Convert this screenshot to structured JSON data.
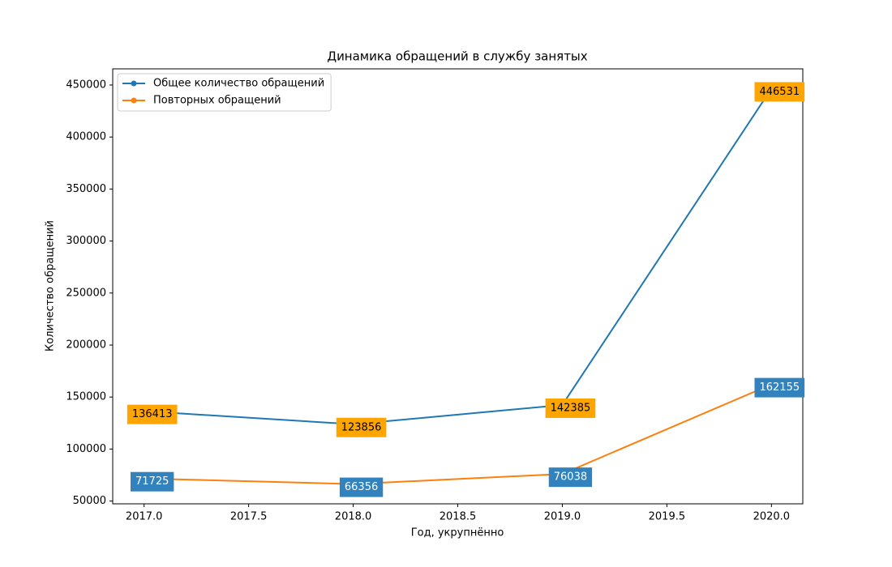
{
  "chart_data": {
    "type": "line",
    "title": "Динамика обращений в службу занятых",
    "x_label": "Год, укрупнённо",
    "y_label": "Количество обращений",
    "x": [
      2017,
      2018,
      2019,
      2020
    ],
    "series": [
      {
        "name": "Общее количество обращений",
        "color": "#1f77b4",
        "label_background": "#ffa500",
        "label_text_color": "#000000",
        "values": [
          136413,
          123856,
          142385,
          446531
        ]
      },
      {
        "name": "Повторных обращений",
        "color": "#ff7f0e",
        "label_background": "#3182bd",
        "label_text_color": "#ffffff",
        "values": [
          71725,
          66356,
          76038,
          162155
        ]
      }
    ],
    "xlim": [
      2016.85,
      2020.15
    ],
    "xticks": [
      {
        "value": 2017,
        "label": "2017.0"
      },
      {
        "value": 2017.5,
        "label": "2017.5"
      },
      {
        "value": 2018,
        "label": "2018.0"
      },
      {
        "value": 2018.5,
        "label": "2018.5"
      },
      {
        "value": 2019,
        "label": "2019.0"
      },
      {
        "value": 2019.5,
        "label": "2019.5"
      },
      {
        "value": 2020,
        "label": "2020.0"
      }
    ],
    "ylim": [
      47347,
      465540
    ],
    "yticks": [
      50000,
      100000,
      150000,
      200000,
      250000,
      300000,
      350000,
      400000,
      450000
    ],
    "legend": "upper left",
    "grid": false
  }
}
